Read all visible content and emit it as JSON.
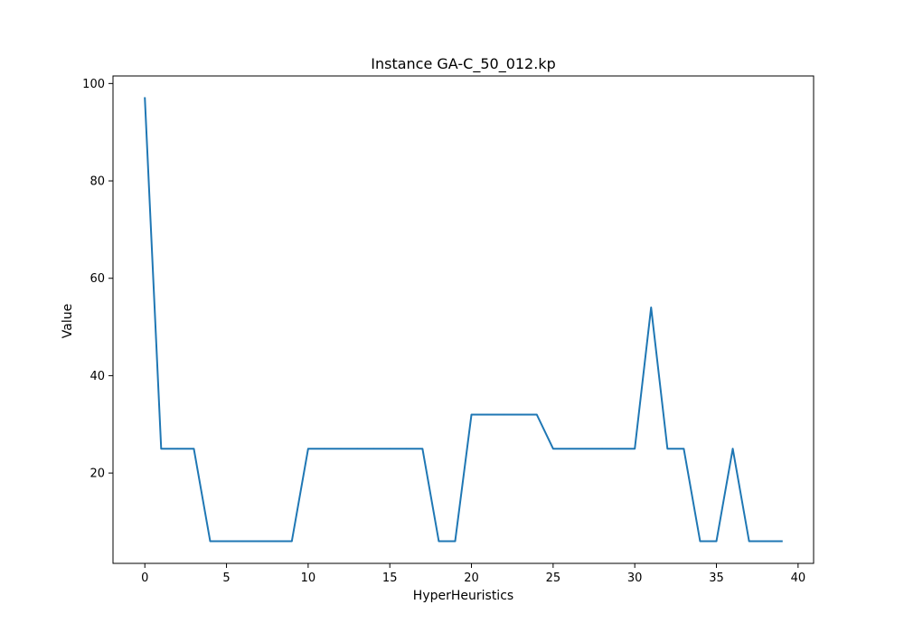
{
  "chart_data": {
    "type": "line",
    "title": "Instance GA-C_50_012.kp",
    "xlabel": "HyperHeuristics",
    "ylabel": "Value",
    "xlim": [
      -1.95,
      40.95
    ],
    "ylim": [
      1.45,
      101.55
    ],
    "x_ticks": [
      0,
      5,
      10,
      15,
      20,
      25,
      30,
      35,
      40
    ],
    "y_ticks": [
      20,
      40,
      60,
      80,
      100
    ],
    "grid": false,
    "series": [
      {
        "color": "#1f77b4",
        "x": [
          0,
          1,
          2,
          3,
          4,
          5,
          6,
          7,
          8,
          9,
          10,
          11,
          12,
          13,
          14,
          15,
          16,
          17,
          18,
          19,
          20,
          21,
          22,
          23,
          24,
          25,
          26,
          27,
          28,
          29,
          30,
          31,
          32,
          33,
          34,
          35,
          36,
          37,
          38,
          39
        ],
        "values": [
          97,
          25,
          25,
          25,
          6,
          6,
          6,
          6,
          6,
          6,
          25,
          25,
          25,
          25,
          25,
          25,
          25,
          25,
          6,
          6,
          32,
          32,
          32,
          32,
          32,
          25,
          25,
          25,
          25,
          25,
          25,
          54,
          25,
          25,
          6,
          6,
          25,
          6,
          6,
          6
        ]
      }
    ]
  }
}
